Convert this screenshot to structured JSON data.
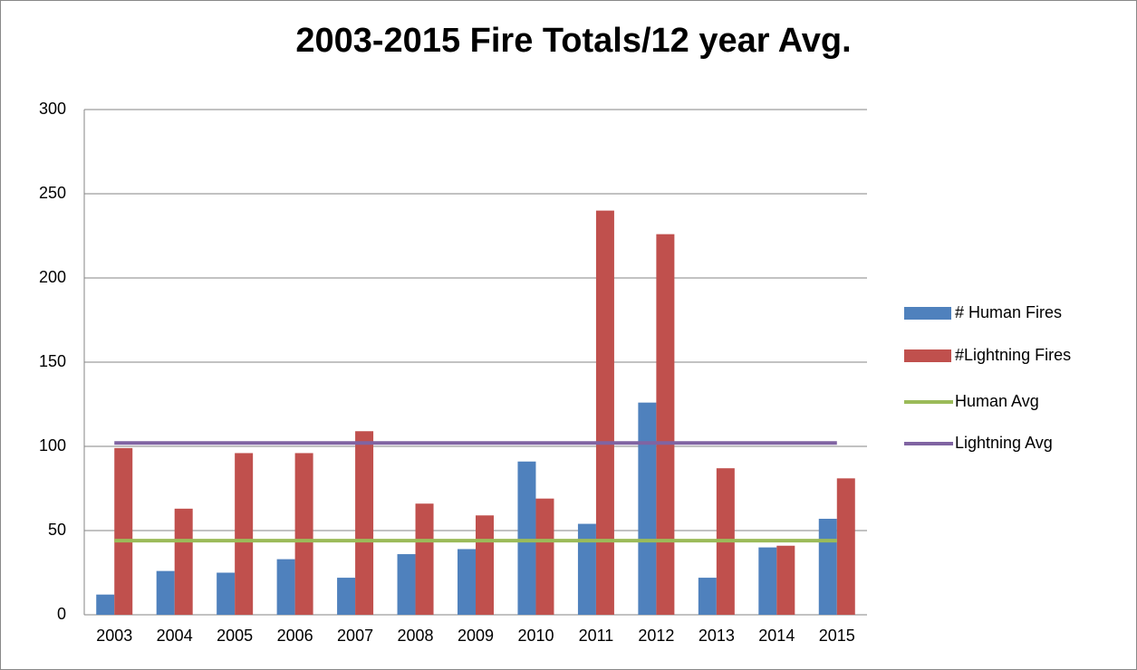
{
  "chart_data": {
    "type": "bar",
    "title": "2003-2015 Fire Totals/12 year Avg.",
    "categories": [
      "2003",
      "2004",
      "2005",
      "2006",
      "2007",
      "2008",
      "2009",
      "2010",
      "2011",
      "2012",
      "2013",
      "2014",
      "2015"
    ],
    "series": [
      {
        "name": "# Human Fires",
        "type": "bar",
        "color": "#4f81bd",
        "values": [
          12,
          26,
          25,
          33,
          22,
          36,
          39,
          91,
          54,
          126,
          22,
          40,
          57
        ]
      },
      {
        "name": "#Lightning Fires",
        "type": "bar",
        "color": "#c0504d",
        "values": [
          99,
          63,
          96,
          96,
          109,
          66,
          59,
          69,
          240,
          226,
          87,
          41,
          81
        ]
      },
      {
        "name": "Human Avg",
        "type": "line",
        "color": "#9bbb59",
        "values": [
          44,
          44,
          44,
          44,
          44,
          44,
          44,
          44,
          44,
          44,
          44,
          44,
          44
        ]
      },
      {
        "name": "Lightning Avg",
        "type": "line",
        "color": "#8064a2",
        "values": [
          102,
          102,
          102,
          102,
          102,
          102,
          102,
          102,
          102,
          102,
          102,
          102,
          102
        ]
      }
    ],
    "ylim": [
      0,
      300
    ],
    "yticks": [
      0,
      50,
      100,
      150,
      200,
      250,
      300
    ],
    "grid": true,
    "legend": "right"
  }
}
